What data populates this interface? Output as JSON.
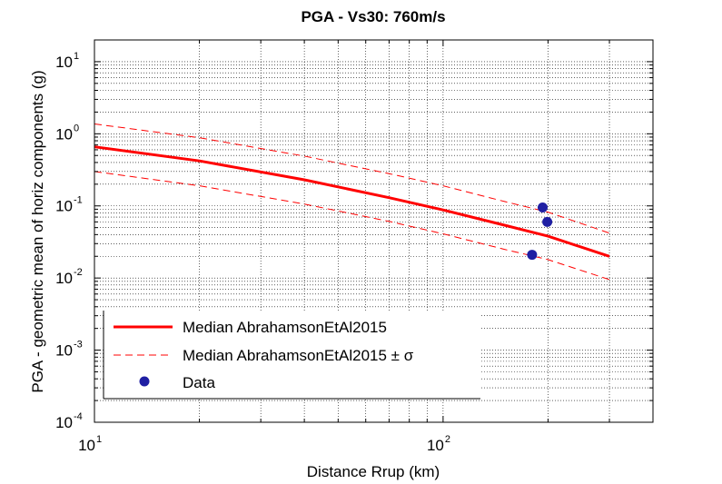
{
  "chart_data": {
    "type": "line",
    "title": "PGA - Vs30: 760m/s",
    "xlabel": "Distance Rrup (km)",
    "ylabel": "PGA - geometric mean of horiz components (g)",
    "xscale": "log",
    "yscale": "log",
    "xlim": [
      10,
      400
    ],
    "ylim": [
      0.0001,
      20
    ],
    "x_ticks": [
      {
        "base": "10",
        "exp": "1",
        "value": 10
      },
      {
        "base": "10",
        "exp": "2",
        "value": 100
      }
    ],
    "y_ticks": [
      {
        "base": "10",
        "exp": "1",
        "value": 10
      },
      {
        "base": "10",
        "exp": "0",
        "value": 1
      },
      {
        "base": "10",
        "exp": "-1",
        "value": 0.1
      },
      {
        "base": "10",
        "exp": "-2",
        "value": 0.01
      },
      {
        "base": "10",
        "exp": "-3",
        "value": 0.001
      },
      {
        "base": "10",
        "exp": "-4",
        "value": 0.0001
      }
    ],
    "grid": true,
    "legend_position": "bottom-left",
    "series": [
      {
        "name": "Median AbrahamsonEtAl2015",
        "style": "solid",
        "color": "#ff0000",
        "x": [
          10,
          20,
          40,
          70,
          100,
          150,
          200,
          300
        ],
        "y": [
          0.66,
          0.42,
          0.23,
          0.13,
          0.088,
          0.054,
          0.038,
          0.02
        ]
      },
      {
        "name": "Median AbrahamsonEtAl2015 ± σ",
        "style": "dashed",
        "color": "#ff0000",
        "x": [
          10,
          20,
          40,
          70,
          100,
          150,
          200,
          300
        ],
        "y": [
          1.37,
          0.88,
          0.49,
          0.28,
          0.19,
          0.115,
          0.082,
          0.042
        ]
      },
      {
        "name": "",
        "style": "dashed",
        "color": "#ff0000",
        "x": [
          10,
          20,
          40,
          70,
          100,
          150,
          200,
          300
        ],
        "y": [
          0.3,
          0.19,
          0.106,
          0.061,
          0.041,
          0.025,
          0.018,
          0.0095
        ]
      },
      {
        "name": "Data",
        "style": "marker",
        "color": "#1f1fa3",
        "x": [
          180,
          193,
          199
        ],
        "y": [
          0.021,
          0.095,
          0.06
        ]
      }
    ],
    "legend": [
      {
        "label": "Median AbrahamsonEtAl2015",
        "style": "solid"
      },
      {
        "label": "Median AbrahamsonEtAl2015 ± σ",
        "style": "dashed"
      },
      {
        "label": "Data",
        "style": "marker"
      }
    ]
  }
}
